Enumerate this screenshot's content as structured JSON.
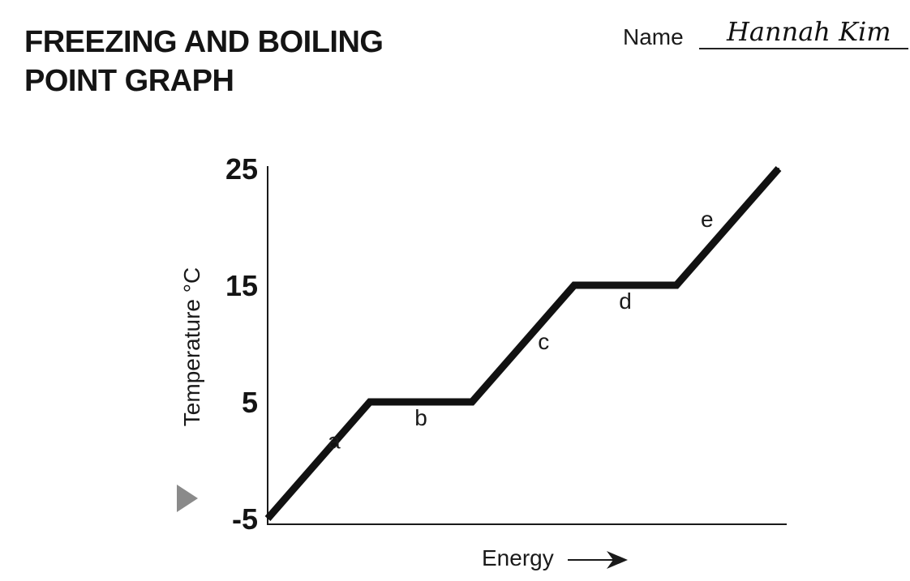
{
  "header": {
    "title_line1": "FREEZING AND BOILING",
    "title_line2": "POINT GRAPH",
    "name_label": "Name",
    "name_value": "Hannah Kim"
  },
  "chart_data": {
    "type": "line",
    "title": "",
    "xlabel": "Energy",
    "ylabel": "Temperature °C",
    "ylim": [
      -5,
      25
    ],
    "yticks": [
      -5,
      5,
      15,
      25
    ],
    "xlim": [
      0,
      100
    ],
    "grid": false,
    "series": [
      {
        "x": [
          0,
          20,
          40,
          60,
          80,
          100
        ],
        "values": [
          -5,
          5,
          5,
          15,
          15,
          25
        ]
      }
    ],
    "segment_labels": [
      {
        "text": "a",
        "x": 13,
        "y": 1
      },
      {
        "text": "b",
        "x": 30,
        "y": 3
      },
      {
        "text": "c",
        "x": 54,
        "y": 9.5
      },
      {
        "text": "d",
        "x": 70,
        "y": 13
      },
      {
        "text": "e",
        "x": 86,
        "y": 20
      }
    ],
    "colors": {
      "line": "#111111",
      "axis": "#1a1a1a"
    }
  }
}
